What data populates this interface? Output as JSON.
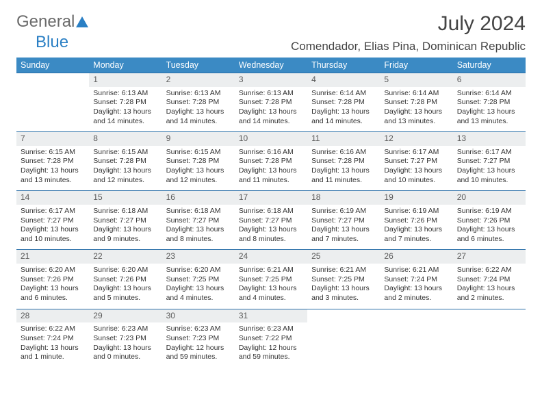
{
  "logo": {
    "text1": "General",
    "text2": "Blue"
  },
  "title": "July 2024",
  "location": "Comendador, Elias Pina, Dominican Republic",
  "colors": {
    "header_bg": "#3b8ac4",
    "header_text": "#ffffff",
    "daynum_bg": "#eceeef",
    "daynum_border": "#2a6fa8",
    "body_text": "#333333",
    "logo_accent": "#2a7fc4"
  },
  "fonts": {
    "title_pt": 30,
    "location_pt": 17,
    "th_pt": 12.5,
    "body_pt": 10.5
  },
  "weekdays": [
    "Sunday",
    "Monday",
    "Tuesday",
    "Wednesday",
    "Thursday",
    "Friday",
    "Saturday"
  ],
  "first_day_offset": 1,
  "days": [
    {
      "n": 1,
      "sunrise": "6:13 AM",
      "sunset": "7:28 PM",
      "daylight": "13 hours and 14 minutes."
    },
    {
      "n": 2,
      "sunrise": "6:13 AM",
      "sunset": "7:28 PM",
      "daylight": "13 hours and 14 minutes."
    },
    {
      "n": 3,
      "sunrise": "6:13 AM",
      "sunset": "7:28 PM",
      "daylight": "13 hours and 14 minutes."
    },
    {
      "n": 4,
      "sunrise": "6:14 AM",
      "sunset": "7:28 PM",
      "daylight": "13 hours and 14 minutes."
    },
    {
      "n": 5,
      "sunrise": "6:14 AM",
      "sunset": "7:28 PM",
      "daylight": "13 hours and 13 minutes."
    },
    {
      "n": 6,
      "sunrise": "6:14 AM",
      "sunset": "7:28 PM",
      "daylight": "13 hours and 13 minutes."
    },
    {
      "n": 7,
      "sunrise": "6:15 AM",
      "sunset": "7:28 PM",
      "daylight": "13 hours and 13 minutes."
    },
    {
      "n": 8,
      "sunrise": "6:15 AM",
      "sunset": "7:28 PM",
      "daylight": "13 hours and 12 minutes."
    },
    {
      "n": 9,
      "sunrise": "6:15 AM",
      "sunset": "7:28 PM",
      "daylight": "13 hours and 12 minutes."
    },
    {
      "n": 10,
      "sunrise": "6:16 AM",
      "sunset": "7:28 PM",
      "daylight": "13 hours and 11 minutes."
    },
    {
      "n": 11,
      "sunrise": "6:16 AM",
      "sunset": "7:28 PM",
      "daylight": "13 hours and 11 minutes."
    },
    {
      "n": 12,
      "sunrise": "6:17 AM",
      "sunset": "7:27 PM",
      "daylight": "13 hours and 10 minutes."
    },
    {
      "n": 13,
      "sunrise": "6:17 AM",
      "sunset": "7:27 PM",
      "daylight": "13 hours and 10 minutes."
    },
    {
      "n": 14,
      "sunrise": "6:17 AM",
      "sunset": "7:27 PM",
      "daylight": "13 hours and 10 minutes."
    },
    {
      "n": 15,
      "sunrise": "6:18 AM",
      "sunset": "7:27 PM",
      "daylight": "13 hours and 9 minutes."
    },
    {
      "n": 16,
      "sunrise": "6:18 AM",
      "sunset": "7:27 PM",
      "daylight": "13 hours and 8 minutes."
    },
    {
      "n": 17,
      "sunrise": "6:18 AM",
      "sunset": "7:27 PM",
      "daylight": "13 hours and 8 minutes."
    },
    {
      "n": 18,
      "sunrise": "6:19 AM",
      "sunset": "7:27 PM",
      "daylight": "13 hours and 7 minutes."
    },
    {
      "n": 19,
      "sunrise": "6:19 AM",
      "sunset": "7:26 PM",
      "daylight": "13 hours and 7 minutes."
    },
    {
      "n": 20,
      "sunrise": "6:19 AM",
      "sunset": "7:26 PM",
      "daylight": "13 hours and 6 minutes."
    },
    {
      "n": 21,
      "sunrise": "6:20 AM",
      "sunset": "7:26 PM",
      "daylight": "13 hours and 6 minutes."
    },
    {
      "n": 22,
      "sunrise": "6:20 AM",
      "sunset": "7:26 PM",
      "daylight": "13 hours and 5 minutes."
    },
    {
      "n": 23,
      "sunrise": "6:20 AM",
      "sunset": "7:25 PM",
      "daylight": "13 hours and 4 minutes."
    },
    {
      "n": 24,
      "sunrise": "6:21 AM",
      "sunset": "7:25 PM",
      "daylight": "13 hours and 4 minutes."
    },
    {
      "n": 25,
      "sunrise": "6:21 AM",
      "sunset": "7:25 PM",
      "daylight": "13 hours and 3 minutes."
    },
    {
      "n": 26,
      "sunrise": "6:21 AM",
      "sunset": "7:24 PM",
      "daylight": "13 hours and 2 minutes."
    },
    {
      "n": 27,
      "sunrise": "6:22 AM",
      "sunset": "7:24 PM",
      "daylight": "13 hours and 2 minutes."
    },
    {
      "n": 28,
      "sunrise": "6:22 AM",
      "sunset": "7:24 PM",
      "daylight": "13 hours and 1 minute."
    },
    {
      "n": 29,
      "sunrise": "6:23 AM",
      "sunset": "7:23 PM",
      "daylight": "13 hours and 0 minutes."
    },
    {
      "n": 30,
      "sunrise": "6:23 AM",
      "sunset": "7:23 PM",
      "daylight": "12 hours and 59 minutes."
    },
    {
      "n": 31,
      "sunrise": "6:23 AM",
      "sunset": "7:22 PM",
      "daylight": "12 hours and 59 minutes."
    }
  ],
  "labels": {
    "sunrise": "Sunrise:",
    "sunset": "Sunset:",
    "daylight": "Daylight:"
  }
}
